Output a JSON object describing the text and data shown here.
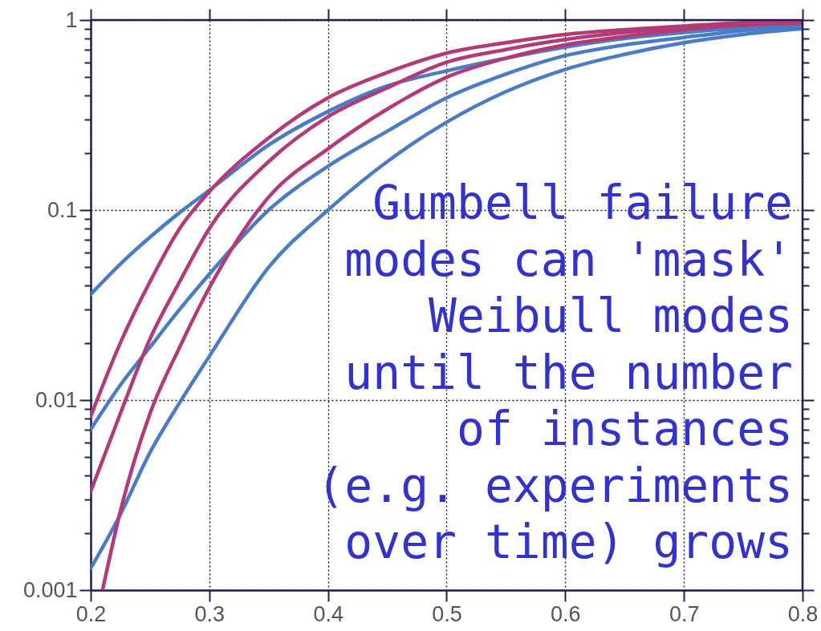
{
  "chart_data": {
    "type": "line",
    "x": [
      0.2,
      0.225,
      0.25,
      0.275,
      0.3,
      0.35,
      0.4,
      0.45,
      0.5,
      0.55,
      0.6,
      0.65,
      0.7,
      0.75,
      0.8
    ],
    "series": [
      {
        "color": "#4a7cc6",
        "values": [
          0.036,
          0.052,
          0.072,
          0.097,
          0.127,
          0.22,
          0.33,
          0.45,
          0.54,
          0.63,
          0.72,
          0.8,
          0.86,
          0.91,
          0.95
        ]
      },
      {
        "color": "#4a7cc6",
        "values": [
          0.007,
          0.012,
          0.019,
          0.03,
          0.046,
          0.1,
          0.17,
          0.26,
          0.39,
          0.52,
          0.65,
          0.74,
          0.81,
          0.88,
          0.93
        ]
      },
      {
        "color": "#4a7cc6",
        "values": [
          0.0013,
          0.0025,
          0.0053,
          0.0097,
          0.017,
          0.05,
          0.1,
          0.18,
          0.29,
          0.42,
          0.55,
          0.66,
          0.76,
          0.84,
          0.9
        ]
      },
      {
        "color": "#b33a76",
        "values": [
          0.0082,
          0.02,
          0.042,
          0.08,
          0.125,
          0.24,
          0.39,
          0.53,
          0.67,
          0.76,
          0.84,
          0.89,
          0.93,
          0.97,
          0.99
        ]
      },
      {
        "color": "#b33a76",
        "values": [
          0.0033,
          0.0085,
          0.021,
          0.042,
          0.08,
          0.18,
          0.31,
          0.44,
          0.6,
          0.7,
          0.79,
          0.86,
          0.91,
          0.95,
          0.98
        ]
      },
      {
        "color": "#b33a76",
        "x": [
          0.21,
          0.225,
          0.25,
          0.275,
          0.3,
          0.35,
          0.4,
          0.45,
          0.5,
          0.55,
          0.6,
          0.65,
          0.7,
          0.75,
          0.8
        ],
        "values": [
          0.001,
          0.0026,
          0.0085,
          0.019,
          0.039,
          0.117,
          0.21,
          0.34,
          0.5,
          0.63,
          0.74,
          0.82,
          0.89,
          0.94,
          0.97
        ]
      }
    ],
    "xlim": [
      0.2,
      0.8
    ],
    "xticks": [
      0.2,
      0.3,
      0.4,
      0.5,
      0.6,
      0.7,
      0.8
    ],
    "ylim": [
      0.001,
      1
    ],
    "yticks": [
      0.001,
      {
        "value": 0.002,
        "label": null
      },
      {
        "value": 0.003,
        "label": null
      },
      {
        "value": 0.004,
        "label": null
      },
      {
        "value": 0.005,
        "label": null
      },
      {
        "value": 0.006,
        "label": null
      },
      {
        "value": 0.007,
        "label": null
      },
      {
        "value": 0.008,
        "label": null
      },
      {
        "value": 0.009,
        "label": null
      },
      0.01,
      {
        "value": 0.02,
        "label": null
      },
      {
        "value": 0.03,
        "label": null
      },
      {
        "value": 0.04,
        "label": null
      },
      {
        "value": 0.05,
        "label": null
      },
      {
        "value": 0.06,
        "label": null
      },
      {
        "value": 0.07,
        "label": null
      },
      {
        "value": 0.08,
        "label": null
      },
      {
        "value": 0.09,
        "label": null
      },
      0.1,
      {
        "value": 0.2,
        "label": null
      },
      {
        "value": 0.3,
        "label": null
      },
      {
        "value": 0.4,
        "label": null
      },
      {
        "value": 0.5,
        "label": null
      },
      {
        "value": 0.6,
        "label": null
      },
      {
        "value": 0.7,
        "label": null
      },
      {
        "value": 0.8,
        "label": null
      },
      {
        "value": 0.9,
        "label": null
      },
      1
    ],
    "log": "y",
    "grid": true,
    "line_style": "solid",
    "annotations": [
      "Gumbell failure\nmodes can 'mask'\nWeibull modes\nuntil the number\nof instances\n(e.g. experiments\nover time) grows"
    ]
  }
}
